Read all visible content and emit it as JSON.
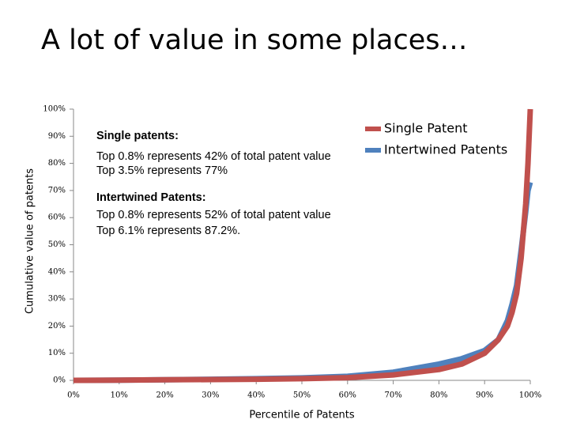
{
  "chart_data": {
    "type": "line",
    "title": "A lot of value in some places…",
    "x_label": "Percentile of Patents",
    "y_label": "Cumulative value of patents",
    "annotations": [
      "Single patents:",
      "Top 0.8% represents 42% of total patent value",
      "Top 3.5% represents 77%",
      "Intertwined Patents:",
      "Top 0.8% represents 52% of total patent value",
      "Top 6.1% represents 87.2%."
    ],
    "x": [
      0,
      10,
      20,
      30,
      40,
      50,
      60,
      70,
      80,
      85,
      90,
      93,
      95,
      96,
      97,
      98,
      99,
      99.5,
      100
    ],
    "series": [
      {
        "name": "Single Patent",
        "color": "#c0504d",
        "values": [
          0,
          0.1,
          0.2,
          0.3,
          0.4,
          0.6,
          1,
          2,
          4,
          6,
          10,
          15,
          20,
          25,
          32,
          45,
          65,
          80,
          100
        ]
      },
      {
        "name": "Intertwined Patents",
        "color": "#4f81bd",
        "values": [
          0,
          0.1,
          0.2,
          0.4,
          0.6,
          0.9,
          1.5,
          3,
          6,
          8,
          11,
          15,
          22,
          28,
          35,
          48,
          62,
          70,
          73
        ]
      }
    ],
    "xlim": [
      0,
      100
    ],
    "ylim": [
      0,
      100
    ],
    "xticks": [
      {
        "value": 0,
        "label": "0%"
      },
      {
        "value": 10,
        "label": "10%"
      },
      {
        "value": 20,
        "label": "20%"
      },
      {
        "value": 30,
        "label": "30%"
      },
      {
        "value": 40,
        "label": "40%"
      },
      {
        "value": 50,
        "label": "50%"
      },
      {
        "value": 60,
        "label": "60%"
      },
      {
        "value": 70,
        "label": "70%"
      },
      {
        "value": 80,
        "label": "80%"
      },
      {
        "value": 90,
        "label": "90%"
      },
      {
        "value": 100,
        "label": "100%"
      }
    ],
    "yticks": [
      {
        "value": 0,
        "label": "0%"
      },
      {
        "value": 10,
        "label": "10%"
      },
      {
        "value": 20,
        "label": "20%"
      },
      {
        "value": 30,
        "label": "30%"
      },
      {
        "value": 40,
        "label": "40%"
      },
      {
        "value": 50,
        "label": "50%"
      },
      {
        "value": 60,
        "label": "60%"
      },
      {
        "value": 70,
        "label": "70%"
      },
      {
        "value": 80,
        "label": "80%"
      },
      {
        "value": 90,
        "label": "90%"
      },
      {
        "value": 100,
        "label": "100%"
      }
    ],
    "legend": "upper right"
  }
}
